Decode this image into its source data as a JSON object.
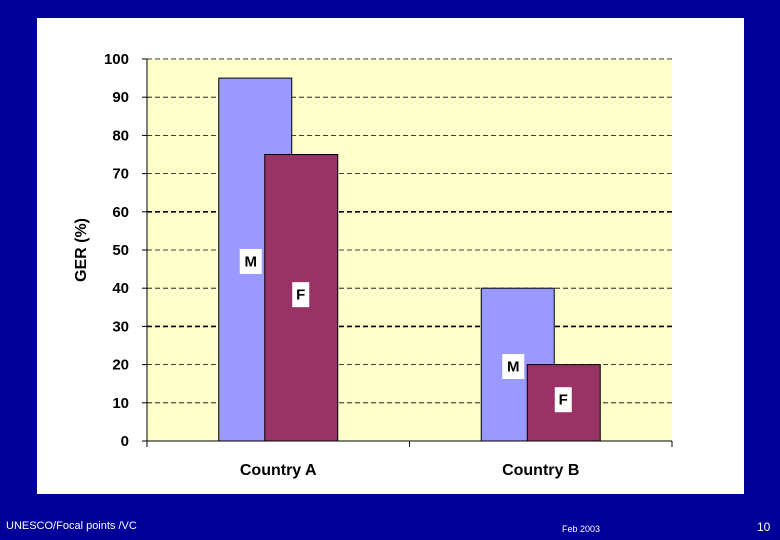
{
  "chart_data": {
    "type": "bar",
    "title": "",
    "xlabel": "",
    "ylabel": "GER (%)",
    "ylim": [
      0,
      100
    ],
    "yticks": [
      0,
      10,
      20,
      30,
      40,
      50,
      60,
      70,
      80,
      90,
      100
    ],
    "categories": [
      "Country A",
      "Country B"
    ],
    "series": [
      {
        "label": "M",
        "values": [
          95,
          40
        ],
        "color": "#9999ff"
      },
      {
        "label": "F",
        "values": [
          75,
          20
        ],
        "color": "#993366"
      }
    ],
    "plot_background": "#ffffcc",
    "grid": true,
    "legend": "none"
  },
  "footer": {
    "left": "UNESCO/Focal points /VC",
    "center": "Feb 2003",
    "page_number": "10"
  },
  "colors": {
    "slide_background": "#000099",
    "chart_background": "#ffffff"
  }
}
